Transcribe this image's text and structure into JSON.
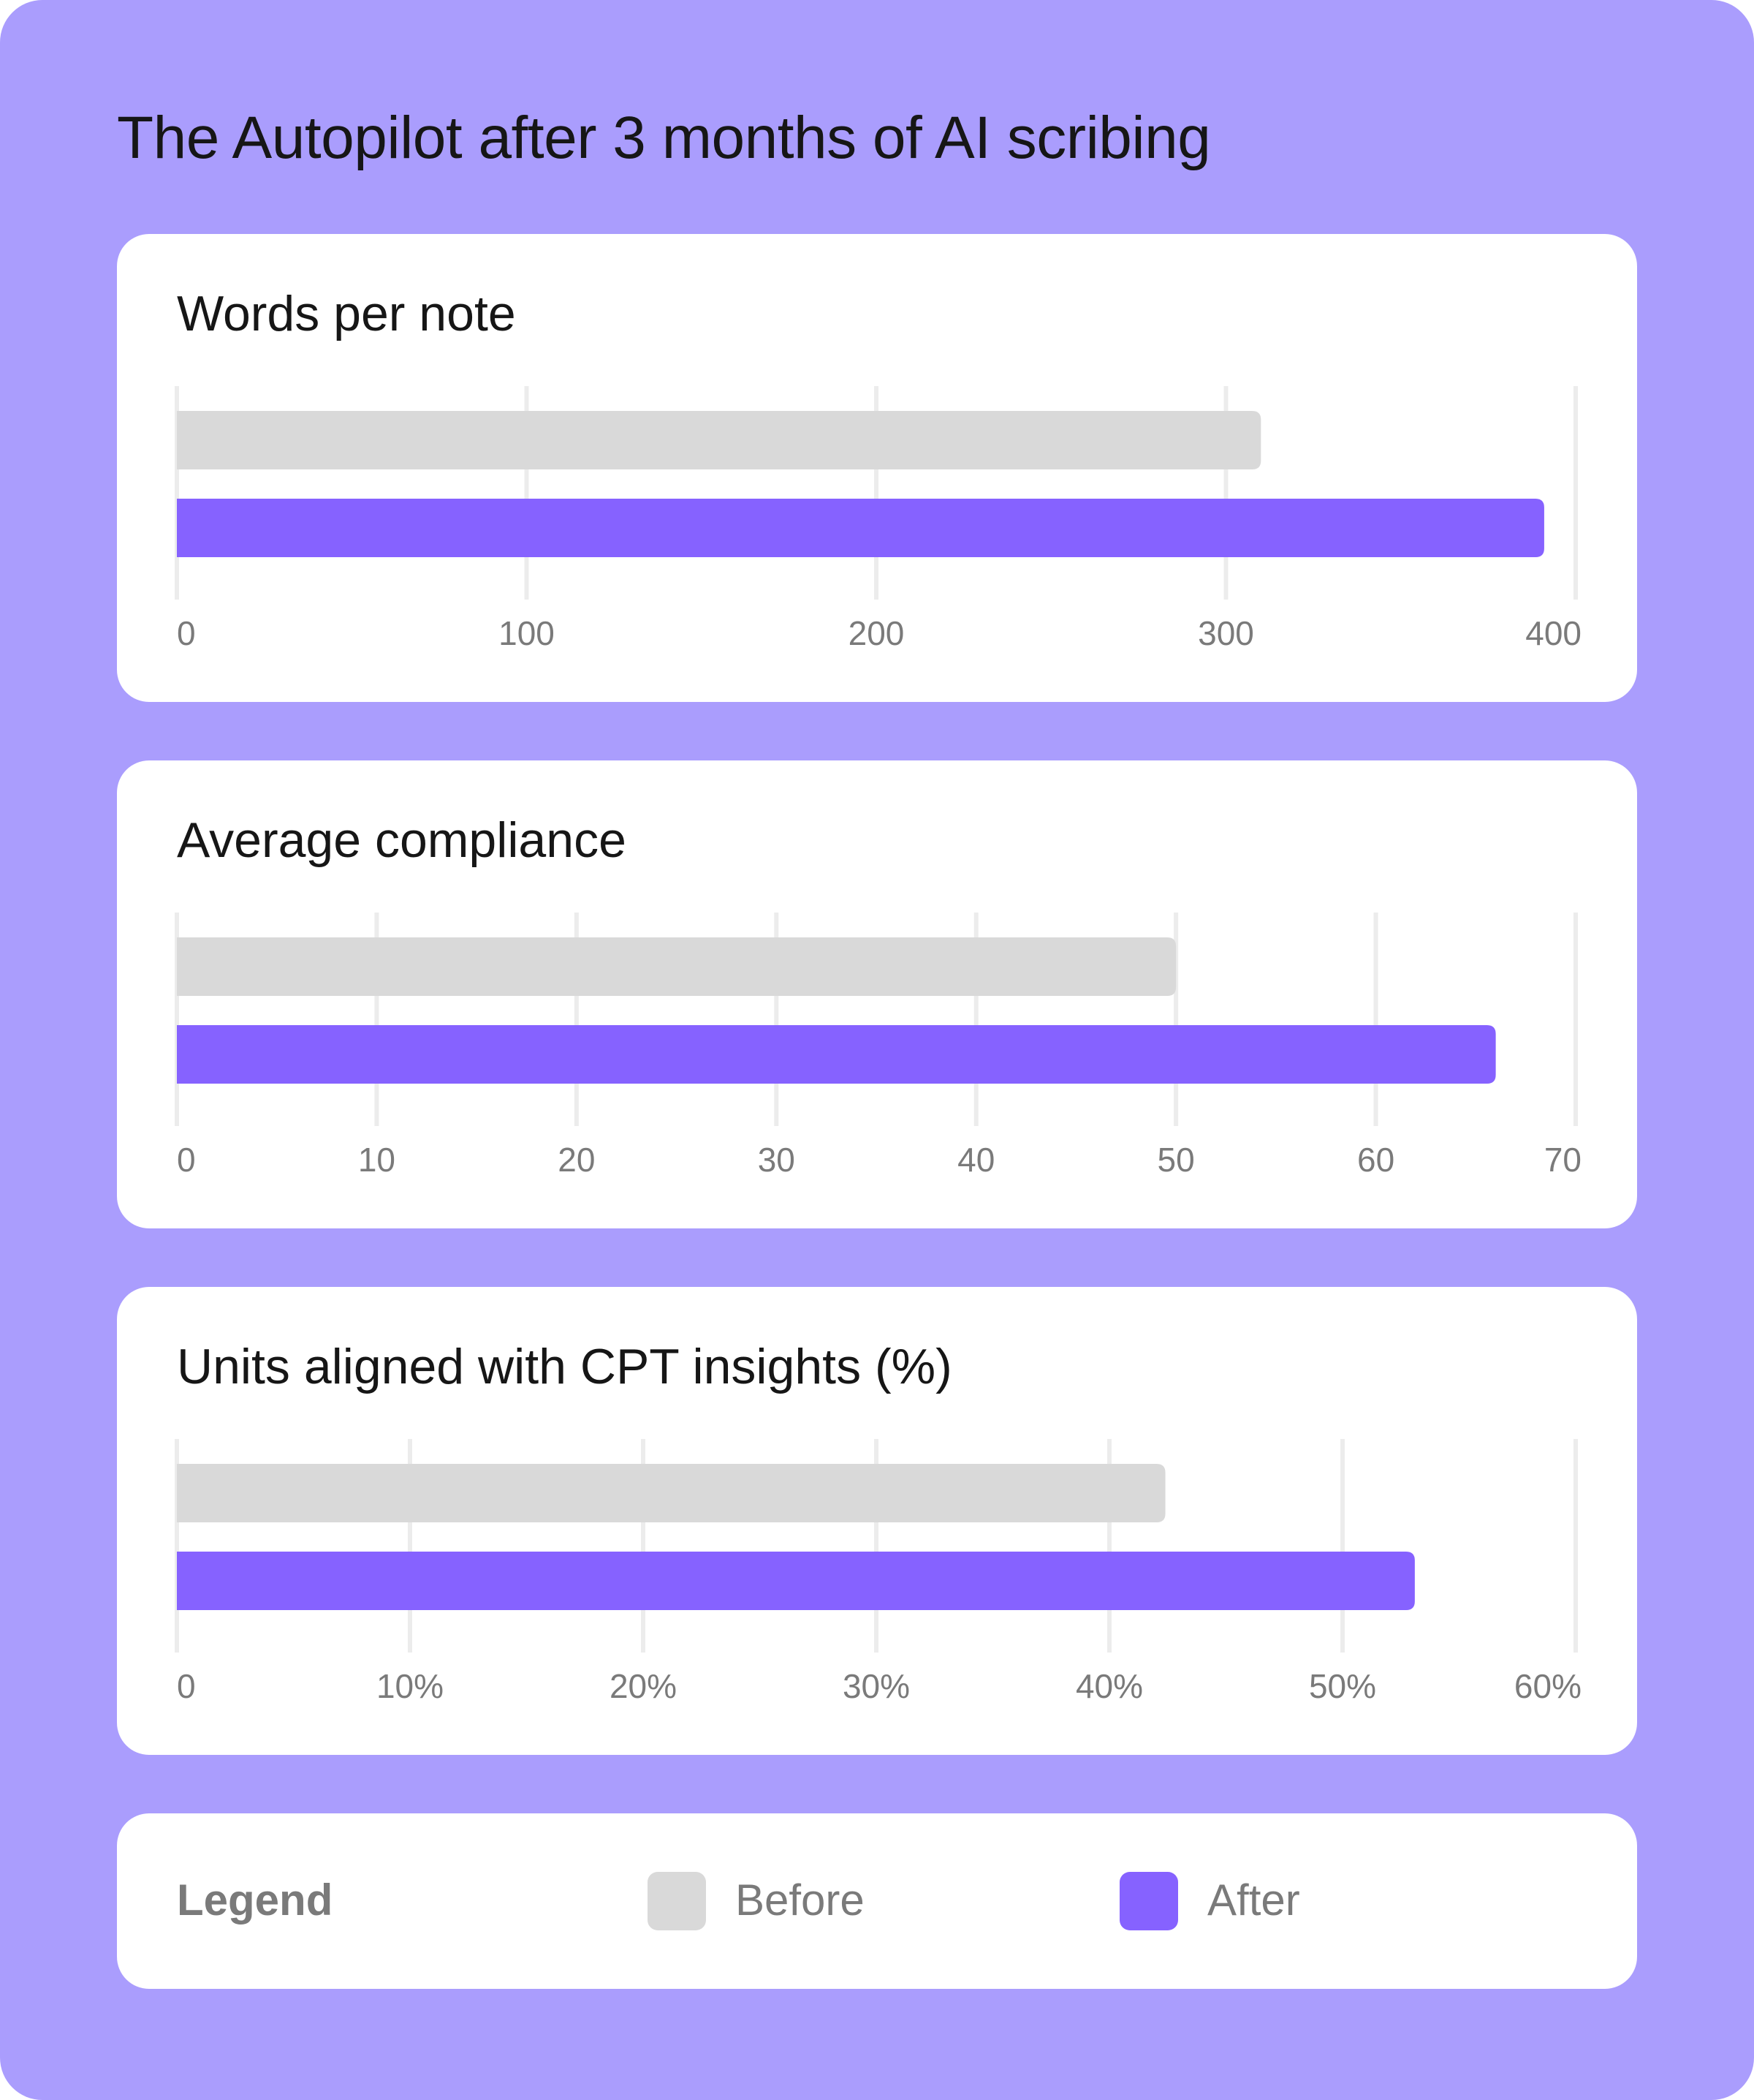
{
  "title": "The Autopilot after 3 months of AI scribing",
  "colors": {
    "before": "#d9d9d9",
    "after": "#8662ff",
    "grid": "#ececec",
    "tick_text": "#7a7a7a"
  },
  "legend": {
    "title": "Legend",
    "items": [
      {
        "label": "Before",
        "color": "#d9d9d9"
      },
      {
        "label": "After",
        "color": "#8662ff"
      }
    ]
  },
  "chart_data": [
    {
      "type": "bar",
      "orientation": "horizontal",
      "title": "Words per note",
      "xlim": [
        0,
        400
      ],
      "ticks": [
        0,
        100,
        200,
        300,
        400
      ],
      "tick_labels": [
        "0",
        "100",
        "200",
        "300",
        "400"
      ],
      "series": [
        {
          "name": "Before",
          "values": [
            310
          ]
        },
        {
          "name": "After",
          "values": [
            391
          ]
        }
      ],
      "grid": true
    },
    {
      "type": "bar",
      "orientation": "horizontal",
      "title": "Average compliance",
      "xlim": [
        0,
        70
      ],
      "ticks": [
        0,
        10,
        20,
        30,
        40,
        50,
        60,
        70
      ],
      "tick_labels": [
        "0",
        "10",
        "20",
        "30",
        "40",
        "50",
        "60",
        "70"
      ],
      "series": [
        {
          "name": "Before",
          "values": [
            50
          ]
        },
        {
          "name": "After",
          "values": [
            66
          ]
        }
      ],
      "grid": true
    },
    {
      "type": "bar",
      "orientation": "horizontal",
      "title": "Units aligned with CPT insights (%)",
      "xlim": [
        0,
        60
      ],
      "ticks": [
        0,
        10,
        20,
        30,
        40,
        50,
        60
      ],
      "tick_labels": [
        "0",
        "10%",
        "20%",
        "30%",
        "40%",
        "50%",
        "60%"
      ],
      "series": [
        {
          "name": "Before",
          "values": [
            42.4
          ]
        },
        {
          "name": "After",
          "values": [
            53.1
          ]
        }
      ],
      "grid": true
    }
  ]
}
